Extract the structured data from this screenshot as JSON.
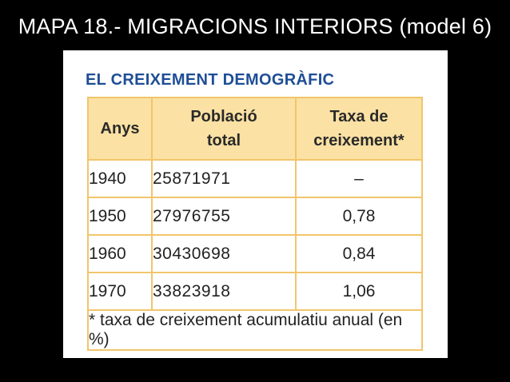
{
  "slide": {
    "title": "MAPA 18.- MIGRACIONS INTERIORS (model 6)"
  },
  "table": {
    "title": "EL CREIXEMENT DEMOGRÀFIC",
    "headers": {
      "year": "Anys",
      "population_line1": "Població",
      "population_line2": "total",
      "rate_line1": "Taxa de",
      "rate_line2": "creixement*"
    },
    "rows": [
      {
        "year": "1940",
        "population": "25871971",
        "rate": "–"
      },
      {
        "year": "1950",
        "population": "27976755",
        "rate": "0,78"
      },
      {
        "year": "1960",
        "population": "30430698",
        "rate": "0,84"
      },
      {
        "year": "1970",
        "population": "33823918",
        "rate": "1,06"
      }
    ],
    "footnote": "* taxa de creixement acumulatiu anual (en %)"
  },
  "colors": {
    "background": "#000000",
    "panel": "#ffffff",
    "title_blue": "#1f4e96",
    "header_fill": "#fbe1a3",
    "border": "#f2c56b"
  },
  "chart_data": {
    "type": "table",
    "title": "EL CREIXEMENT DEMOGRÀFIC",
    "columns": [
      "Anys",
      "Població total",
      "Taxa de creixement*"
    ],
    "rows": [
      [
        "1940",
        "25871971",
        "–"
      ],
      [
        "1950",
        "27976755",
        "0,78"
      ],
      [
        "1960",
        "30430698",
        "0,84"
      ],
      [
        "1970",
        "33823918",
        "1,06"
      ]
    ],
    "footnote": "* taxa de creixement acumulatiu anual (en %)"
  }
}
